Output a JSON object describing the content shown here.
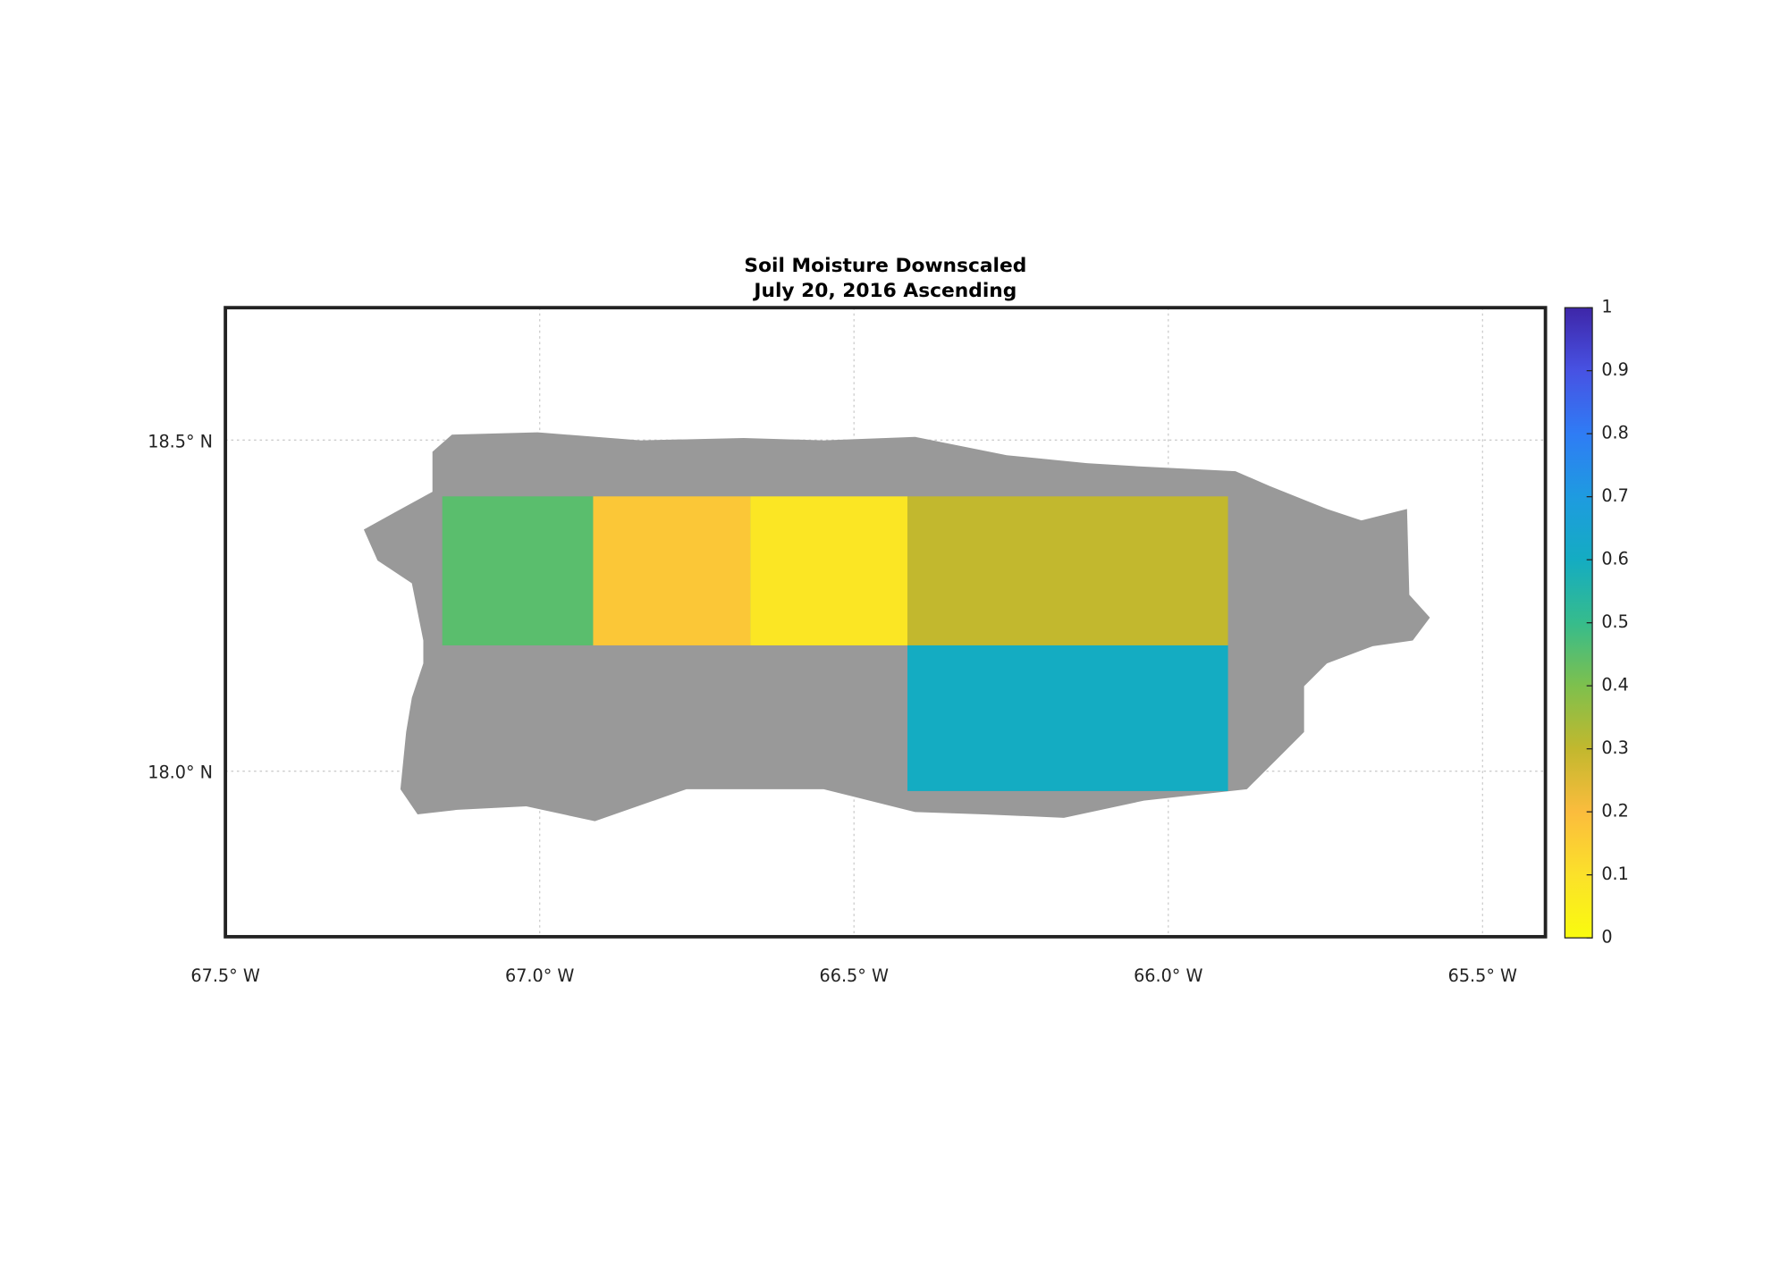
{
  "map": {
    "title": "Soil Moisture Downscaled",
    "subtitle": "July 20, 2016 Ascending",
    "xlim": [
      -67.5,
      -65.4
    ],
    "ylim": [
      17.75,
      18.7
    ],
    "xticks": [
      {
        "value": -67.5,
        "label": "67.5° W"
      },
      {
        "value": -67.0,
        "label": "67.0° W"
      },
      {
        "value": -66.5,
        "label": "66.5° W"
      },
      {
        "value": -66.0,
        "label": "66.0° W"
      },
      {
        "value": -65.5,
        "label": "65.5° W"
      }
    ],
    "yticks": [
      {
        "value": 18.5,
        "label": "18.5° N"
      },
      {
        "value": 18.0,
        "label": "18.0° N"
      }
    ],
    "grid": true,
    "colorbar": {
      "lim": [
        0,
        1
      ],
      "ticks": [
        0,
        0.1,
        0.2,
        0.3,
        0.4,
        0.5,
        0.6,
        0.7,
        0.8,
        0.9,
        1
      ],
      "colors": [
        "#f9fb0e",
        "#fbe12a",
        "#fbbc3d",
        "#c2b82e",
        "#7ec04d",
        "#36bc8c",
        "#14acc2",
        "#1e9be0",
        "#2f7cf5",
        "#4752e3",
        "#3e26a8"
      ]
    },
    "tiles": [
      {
        "west": -67.155,
        "east": -66.915,
        "south": 18.19,
        "north": 18.415,
        "value": 0.45
      },
      {
        "west": -66.915,
        "east": -66.665,
        "south": 18.19,
        "north": 18.415,
        "value": 0.17
      },
      {
        "west": -66.665,
        "east": -66.415,
        "south": 18.19,
        "north": 18.415,
        "value": 0.08
      },
      {
        "west": -66.415,
        "east": -65.905,
        "south": 18.19,
        "north": 18.415,
        "value": 0.3
      },
      {
        "west": -66.415,
        "east": -65.905,
        "south": 17.97,
        "north": 18.19,
        "value": 0.6
      }
    ]
  }
}
